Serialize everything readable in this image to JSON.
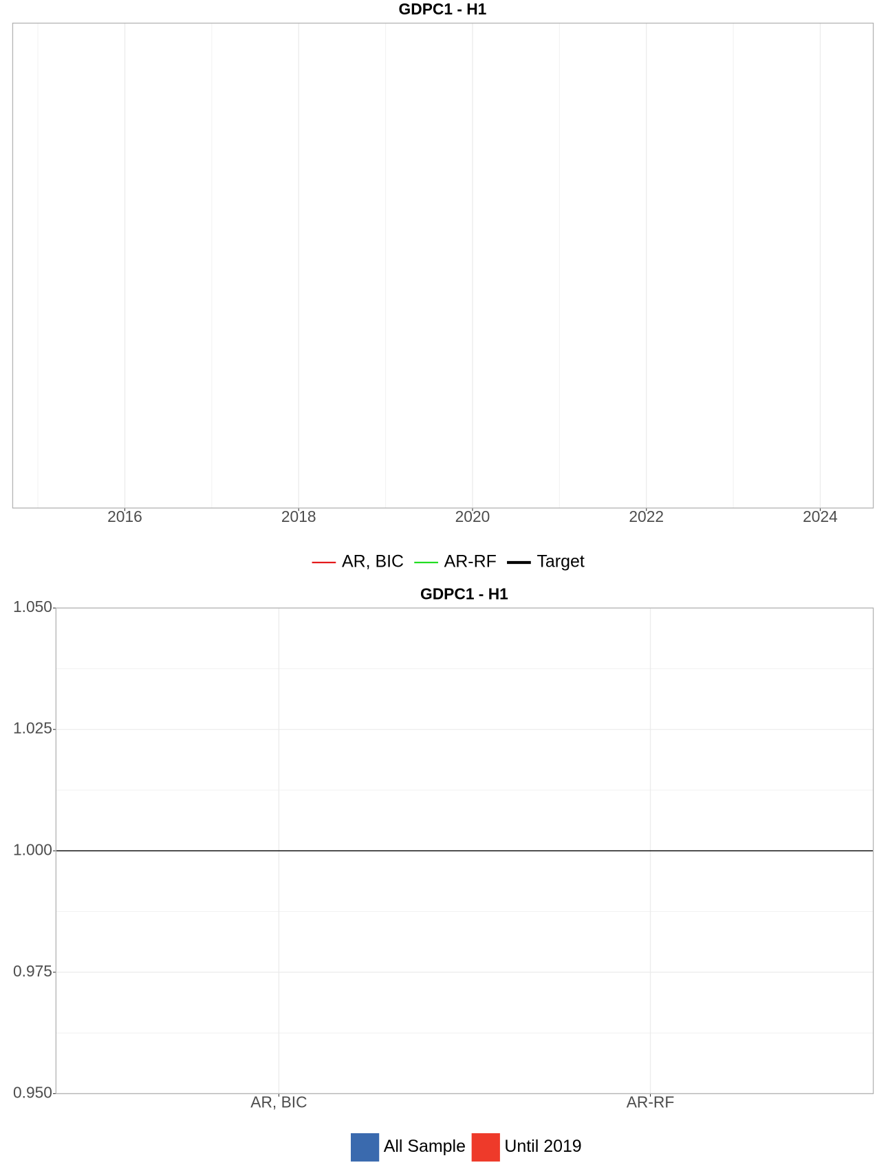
{
  "chart_data": [
    {
      "type": "line",
      "title": "GDPC1 - H1",
      "x": [],
      "series": [
        {
          "name": "AR, BIC",
          "color": "#e41a1c",
          "values": []
        },
        {
          "name": "AR-RF",
          "color": "#22dd22",
          "values": []
        },
        {
          "name": "Target",
          "color": "#000000",
          "values": []
        }
      ],
      "xlim": [
        2014.71,
        2024.61
      ],
      "xticks": [
        2016,
        2018,
        2020,
        2022,
        2024
      ],
      "grid": true,
      "legend": "bottom"
    },
    {
      "type": "bar",
      "title": "GDPC1 - H1",
      "categories": [
        "AR, BIC",
        "AR-RF"
      ],
      "series": [
        {
          "name": "All Sample",
          "color": "#3a6aae",
          "values": [
            null,
            null
          ]
        },
        {
          "name": "Until 2019",
          "color": "#ee3a2a",
          "values": [
            null,
            null
          ]
        }
      ],
      "ylim": [
        0.95,
        1.05
      ],
      "yticks": [
        {
          "value": 0.95,
          "label": "0.950"
        },
        {
          "value": 0.975,
          "label": "0.975"
        },
        {
          "value": 1,
          "label": "1.000"
        },
        {
          "value": 1.025,
          "label": "1.025"
        },
        {
          "value": 1.05,
          "label": "1.050"
        }
      ],
      "hline": 1,
      "grid": true,
      "legend": "bottom"
    }
  ]
}
